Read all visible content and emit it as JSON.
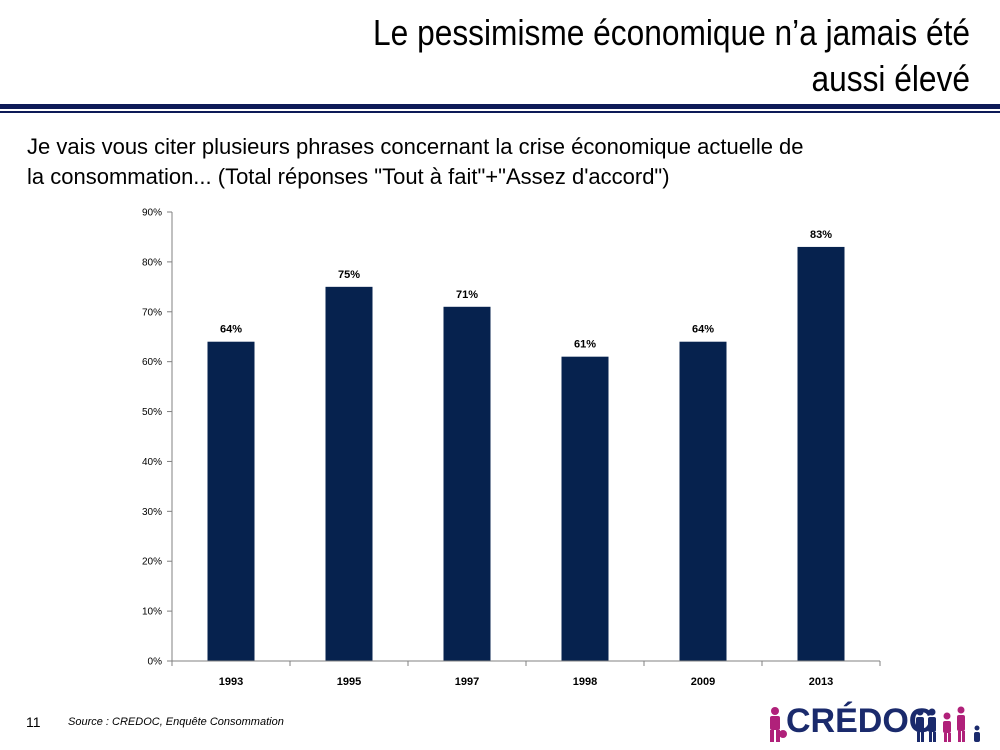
{
  "header": {
    "title_line1": "Le pessimisme économique n’a jamais été",
    "title_line2": "aussi élevé"
  },
  "subtitle": {
    "line1": "Je vais vous citer plusieurs phrases concernant la crise économique actuelle de",
    "line2": "la consommation... (Total réponses \"Tout à fait\"+\"Assez d'accord\")"
  },
  "chart_data": {
    "type": "bar",
    "categories": [
      "1993",
      "1995",
      "1997",
      "1998",
      "2009",
      "2013"
    ],
    "values": [
      64,
      75,
      71,
      61,
      64,
      83
    ],
    "data_labels": [
      "64%",
      "75%",
      "71%",
      "61%",
      "64%",
      "83%"
    ],
    "y_ticks": [
      "0%",
      "10%",
      "20%",
      "30%",
      "40%",
      "50%",
      "60%",
      "70%",
      "80%",
      "90%"
    ],
    "ylim": [
      0,
      90
    ],
    "bar_color": "#06224e",
    "grid": false,
    "legend": "none"
  },
  "footer": {
    "page_number": "11",
    "source": "Source : CREDOC, Enquête Consommation",
    "logo_text": "CRÉDOC"
  },
  "colors": {
    "rule": "#0d1a57",
    "logo_text": "#1a2a6c",
    "logo_accent": "#b0217a"
  }
}
